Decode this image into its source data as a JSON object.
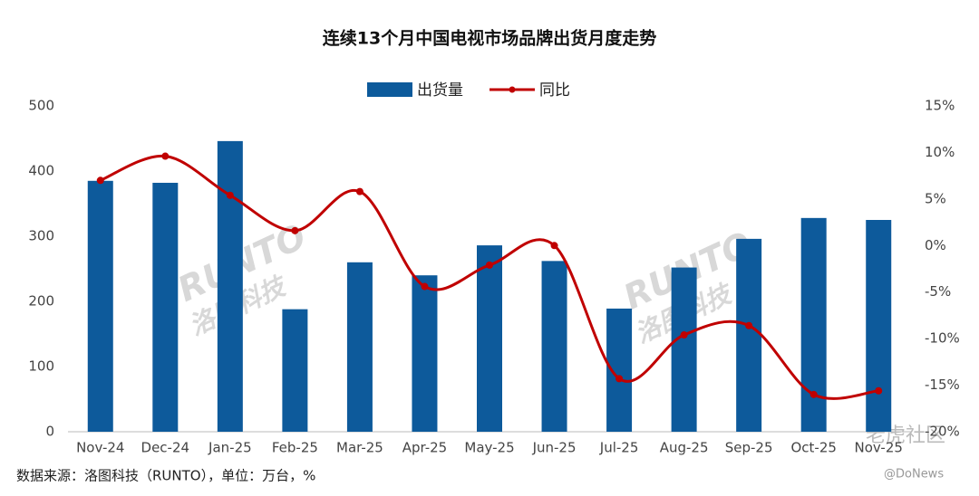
{
  "chart_data": {
    "type": "bar-line",
    "title": "连续13个月中国电视市场品牌出货月度走势",
    "source": "数据来源：洛图科技（RUNTO），单位：万台，%",
    "watermarks": [
      "RUNTO",
      "洛图科技",
      "老虎社区",
      "@DoNews"
    ],
    "categories": [
      "Nov-24",
      "Dec-24",
      "Jan-25",
      "Feb-25",
      "Mar-25",
      "Apr-25",
      "May-25",
      "Jun-25",
      "Jul-25",
      "Aug-25",
      "Sep-25",
      "Oct-25",
      "Nov-25"
    ],
    "series": [
      {
        "name": "出货量",
        "type": "bar",
        "color": "#0d5a9b",
        "values": [
          385,
          382,
          446,
          188,
          260,
          240,
          286,
          262,
          189,
          252,
          296,
          328,
          325
        ]
      },
      {
        "name": "同比",
        "type": "line",
        "axis": "y2",
        "color": "#c00000",
        "values": [
          7.0,
          9.6,
          5.4,
          1.6,
          5.8,
          -4.4,
          -2.1,
          0,
          -14.3,
          -9.6,
          -8.6,
          -16.0,
          -15.6
        ]
      }
    ],
    "ylim": [
      0,
      500
    ],
    "yticks": [
      0,
      100,
      200,
      300,
      400,
      500
    ],
    "y2lim": [
      -20,
      15
    ],
    "y2ticks": [
      {
        "value": 15,
        "label": "15%"
      },
      {
        "value": 10,
        "label": "10%"
      },
      {
        "value": 5,
        "label": "5%"
      },
      {
        "value": 0,
        "label": "0%"
      },
      {
        "value": -5,
        "label": "-5%"
      },
      {
        "value": -10,
        "label": "-10%"
      },
      {
        "value": -15,
        "label": "-15%"
      },
      {
        "value": -20,
        "label": "-20%"
      }
    ],
    "legend": "top"
  }
}
